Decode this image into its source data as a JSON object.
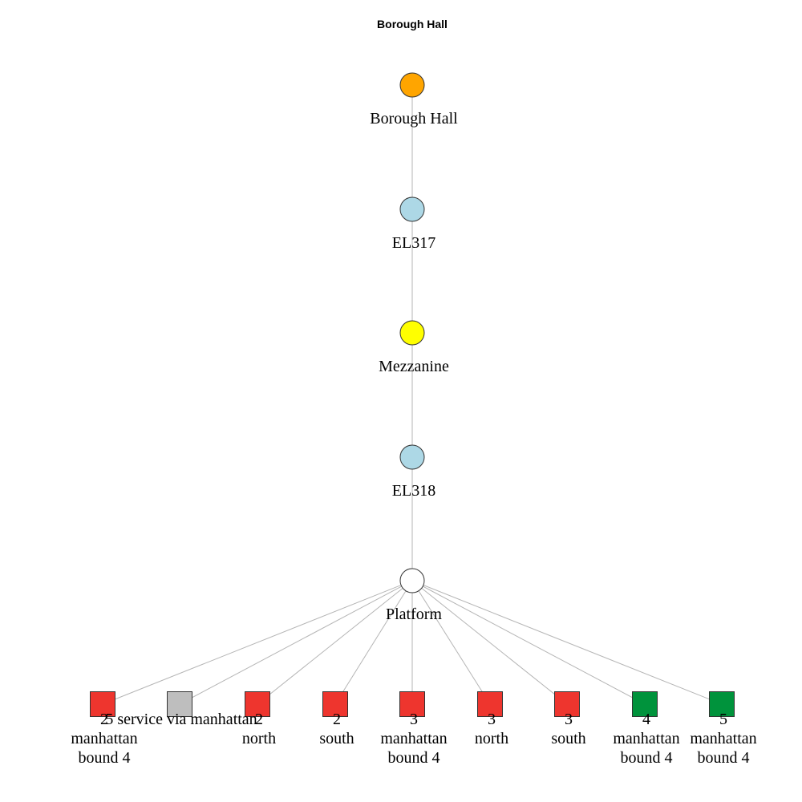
{
  "title": "Borough Hall",
  "nodes": [
    {
      "id": "n0",
      "label": "Borough Hall",
      "shape": "circle",
      "color": "#FFA500"
    },
    {
      "id": "n1",
      "label": "EL317",
      "shape": "circle",
      "color": "#ADD8E6"
    },
    {
      "id": "n2",
      "label": "Mezzanine",
      "shape": "circle",
      "color": "#FFFF00"
    },
    {
      "id": "n3",
      "label": "EL318",
      "shape": "circle",
      "color": "#ADD8E6"
    },
    {
      "id": "n4",
      "label": "Platform",
      "shape": "circle",
      "color": "#FFFFFF"
    },
    {
      "id": "r0",
      "label": "2\nmanhattan\nbound 4",
      "shape": "square",
      "color": "#EE352E"
    },
    {
      "id": "r1",
      "label": "5 service via manhattan",
      "shape": "square",
      "color": "#BEBEBE"
    },
    {
      "id": "r2",
      "label": "2\nnorth",
      "shape": "square",
      "color": "#EE352E"
    },
    {
      "id": "r3",
      "label": "2\nsouth",
      "shape": "square",
      "color": "#EE352E"
    },
    {
      "id": "r4",
      "label": "3\nmanhattan\nbound 4",
      "shape": "square",
      "color": "#EE352E"
    },
    {
      "id": "r5",
      "label": "3\nnorth",
      "shape": "square",
      "color": "#EE352E"
    },
    {
      "id": "r6",
      "label": "3\nsouth",
      "shape": "square",
      "color": "#EE352E"
    },
    {
      "id": "r7",
      "label": "4\nmanhattan\nbound 4",
      "shape": "square",
      "color": "#00933C"
    },
    {
      "id": "r8",
      "label": "5\nmanhattan\nbound 4",
      "shape": "square",
      "color": "#00933C"
    }
  ],
  "edges": [
    [
      "n0",
      "n1"
    ],
    [
      "n1",
      "n2"
    ],
    [
      "n2",
      "n3"
    ],
    [
      "n3",
      "n4"
    ],
    [
      "n4",
      "r0"
    ],
    [
      "n4",
      "r1"
    ],
    [
      "n4",
      "r2"
    ],
    [
      "n4",
      "r3"
    ],
    [
      "n4",
      "r4"
    ],
    [
      "n4",
      "r5"
    ],
    [
      "n4",
      "r6"
    ],
    [
      "n4",
      "r7"
    ],
    [
      "n4",
      "r8"
    ]
  ]
}
